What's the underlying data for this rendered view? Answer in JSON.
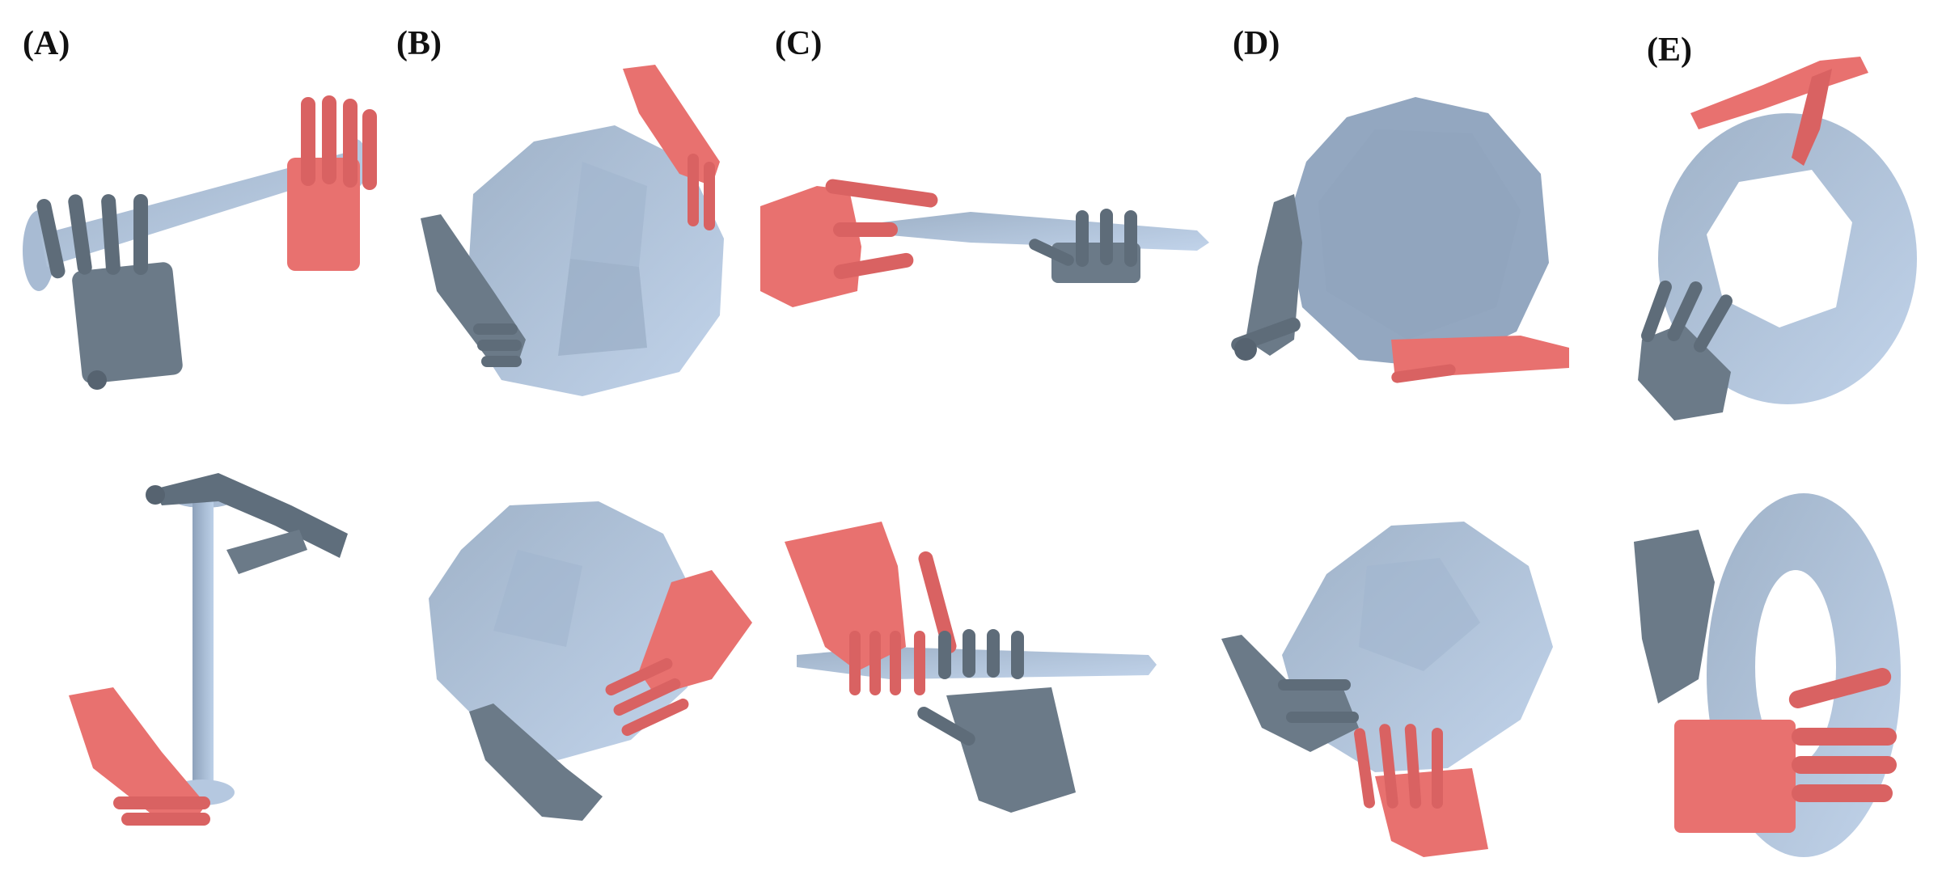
{
  "figure": {
    "panels": [
      {
        "label": "(A)"
      },
      {
        "label": "(B)"
      },
      {
        "label": "(C)"
      },
      {
        "label": "(D)"
      },
      {
        "label": "(E)"
      }
    ],
    "colors": {
      "object": "#b3c6de",
      "object_shade": "#93a7c0",
      "left_hand": "#6b7a88",
      "left_hand_dark": "#566370",
      "right_hand": "#e8716f",
      "right_hand_dark": "#c95c5c"
    }
  }
}
